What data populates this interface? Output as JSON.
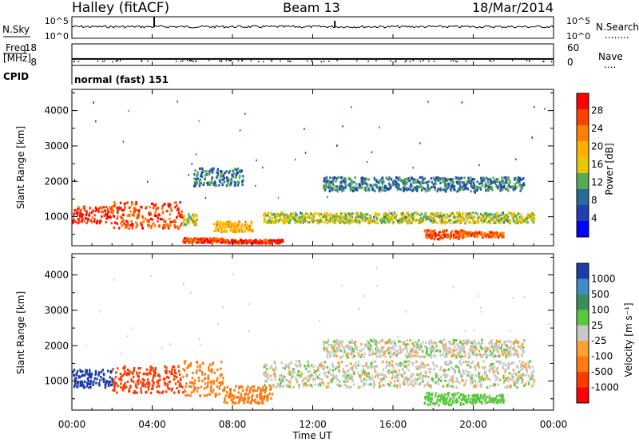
{
  "header": {
    "station": "Halley (fitACF)",
    "beam": "Beam 13",
    "date": "18/Mar/2014"
  },
  "status_panels": {
    "nsky_label": "N.Sky",
    "nsky_ticks": [
      "10^5",
      "10^0"
    ],
    "nsearch_label": "N.Search",
    "nsearch_legend": "........",
    "nsearch_ticks": [
      "10^5",
      "10^0"
    ],
    "freq_label_line1": "Freq.",
    "freq_label_line2": "[MHz]",
    "freq_ticks": [
      "18",
      "8"
    ],
    "nave_label": "Nave",
    "nave_legend": "....",
    "nave_ticks": [
      "60",
      "0"
    ],
    "cpid_label": "CPID",
    "cpid_value": "normal (fast) 151"
  },
  "x_ticks": [
    "00:00",
    "04:00",
    "08:00",
    "12:00",
    "16:00",
    "20:00",
    "00:00"
  ],
  "xlabel": "Time UT",
  "power_colorbar": {
    "title": "Power [dB]",
    "ticks": [
      "28",
      "24",
      "20",
      "16",
      "12",
      "8",
      "4"
    ],
    "colors": [
      "#ff0000",
      "#ff4000",
      "#ff8000",
      "#ffb000",
      "#e6c800",
      "#55aa55",
      "#2a6a9a",
      "#1f3fb0",
      "#0000ff"
    ]
  },
  "velocity_colorbar": {
    "title": "Velocity [m s⁻¹]",
    "ticks": [
      "1000",
      "500",
      "100",
      "25",
      "-25",
      "-100",
      "-500",
      "-1000"
    ],
    "colors": [
      "#1c3ca8",
      "#3f8ec9",
      "#3c8c5c",
      "#58c840",
      "#c8c8c8",
      "#ffa030",
      "#ff7a10",
      "#ff3a00",
      "#ff0000"
    ]
  },
  "chart_data": [
    {
      "type": "line",
      "panel": "N.Sky / N.Search",
      "ylabel": "N.Sky",
      "ylim_labels": [
        "10^0",
        "10^5"
      ],
      "notes": "nearly constant high counts all day"
    },
    {
      "type": "line",
      "panel": "Freq / Nave",
      "ylabel": "Freq. [MHz]",
      "ylim": [
        8,
        18
      ],
      "series": [
        {
          "name": "Freq.",
          "x": [
            0,
            24
          ],
          "y": [
            11,
            11
          ]
        }
      ]
    },
    {
      "type": "heatmap",
      "panel": "Power",
      "xlabel": "Time UT",
      "ylabel": "Slant Range [km]",
      "xlim_hours": [
        0,
        24
      ],
      "ylim_km": [
        180,
        4600
      ],
      "yticks": [
        1000,
        2000,
        3000,
        4000
      ],
      "colorbar_label": "Power [dB]",
      "regions": [
        {
          "t0": 0.0,
          "t1": 2.0,
          "r0": 850,
          "r1": 1320,
          "value": 28
        },
        {
          "t0": 2.0,
          "t1": 5.5,
          "r0": 700,
          "r1": 1450,
          "value": 26
        },
        {
          "t0": 5.5,
          "t1": 6.2,
          "r0": 800,
          "r1": 1100,
          "value": 14
        },
        {
          "t0": 5.5,
          "t1": 7.5,
          "r0": 300,
          "r1": 430,
          "value": 26
        },
        {
          "t0": 7.0,
          "t1": 9.0,
          "r0": 600,
          "r1": 900,
          "value": 18
        },
        {
          "t0": 7.5,
          "t1": 10.5,
          "r0": 280,
          "r1": 380,
          "value": 28
        },
        {
          "t0": 6.0,
          "t1": 8.5,
          "r0": 1900,
          "r1": 2400,
          "value": 8
        },
        {
          "t0": 9.5,
          "t1": 23.0,
          "r0": 850,
          "r1": 1150,
          "value": 14
        },
        {
          "t0": 12.5,
          "t1": 22.5,
          "r0": 1750,
          "r1": 2150,
          "value": 8
        },
        {
          "t0": 17.5,
          "t1": 19.5,
          "r0": 400,
          "r1": 650,
          "value": 26
        },
        {
          "t0": 19.5,
          "t1": 21.5,
          "r0": 450,
          "r1": 600,
          "value": 24
        }
      ]
    },
    {
      "type": "heatmap",
      "panel": "Velocity",
      "xlabel": "Time UT",
      "ylabel": "Slant Range [km]",
      "xlim_hours": [
        0,
        24
      ],
      "ylim_km": [
        180,
        4600
      ],
      "yticks": [
        1000,
        2000,
        3000,
        4000
      ],
      "colorbar_label": "Velocity [m s⁻¹]",
      "regions": [
        {
          "t0": 0.0,
          "t1": 2.0,
          "r0": 850,
          "r1": 1350,
          "value": 800
        },
        {
          "t0": 2.0,
          "t1": 5.5,
          "r0": 700,
          "r1": 1450,
          "value": -600
        },
        {
          "t0": 5.5,
          "t1": 7.5,
          "r0": 600,
          "r1": 1600,
          "value": -300
        },
        {
          "t0": 7.5,
          "t1": 10.0,
          "r0": 400,
          "r1": 900,
          "value": -150
        },
        {
          "t0": 9.5,
          "t1": 23.0,
          "r0": 850,
          "r1": 1600,
          "value": 0
        },
        {
          "t0": 12.5,
          "t1": 22.5,
          "r0": 1700,
          "r1": 2200,
          "value": 0
        },
        {
          "t0": 17.5,
          "t1": 19.5,
          "r0": 350,
          "r1": 700,
          "value": 60
        },
        {
          "t0": 19.5,
          "t1": 21.5,
          "r0": 400,
          "r1": 650,
          "value": 60
        }
      ]
    }
  ]
}
